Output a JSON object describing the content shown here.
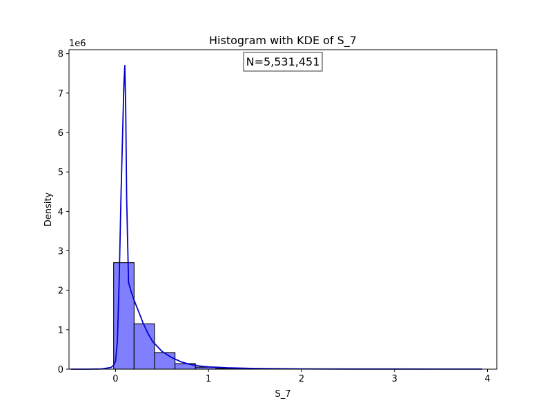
{
  "chart_data": {
    "type": "bar",
    "title": "Histogram with KDE of S_7",
    "xlabel": "S_7",
    "ylabel": "Density",
    "y_scale_label": "1e6",
    "annotation": "N=5,531,451",
    "xlim": [
      -0.5,
      4.1
    ],
    "ylim": [
      0,
      8.1
    ],
    "x_ticks": [
      0,
      1,
      2,
      3,
      4
    ],
    "x_tick_labels": [
      "0",
      "1",
      "2",
      "3",
      "4"
    ],
    "y_ticks": [
      0,
      1,
      2,
      3,
      4,
      5,
      6,
      7,
      8
    ],
    "y_tick_labels": [
      "0",
      "1",
      "2",
      "3",
      "4",
      "5",
      "6",
      "7",
      "8"
    ],
    "grid": false,
    "bin_edges": [
      -0.02,
      0.2,
      0.42,
      0.64,
      0.86,
      1.08,
      1.3,
      1.52,
      1.74,
      1.96,
      2.18,
      2.4,
      2.62,
      2.84,
      3.06,
      3.28,
      3.5,
      3.72,
      3.94
    ],
    "values": [
      2.7,
      1.15,
      0.42,
      0.14,
      0.05,
      0.02,
      0.012,
      0.008,
      0.005,
      0.004,
      0.003,
      0.002,
      0.002,
      0.0015,
      0.001,
      0.001,
      0.001,
      0.0008
    ],
    "kde": {
      "x": [
        -0.48,
        -0.3,
        -0.15,
        -0.05,
        -0.02,
        0.0,
        0.02,
        0.04,
        0.06,
        0.08,
        0.09,
        0.1,
        0.11,
        0.12,
        0.14,
        0.17,
        0.2,
        0.25,
        0.3,
        0.35,
        0.4,
        0.5,
        0.6,
        0.7,
        0.8,
        0.9,
        1.0,
        1.2,
        1.5,
        2.0,
        2.5,
        3.0,
        3.5,
        3.94
      ],
      "y": [
        0.0,
        0.0,
        0.005,
        0.04,
        0.1,
        0.2,
        0.7,
        2.3,
        4.5,
        6.3,
        7.2,
        7.7,
        6.6,
        4.3,
        2.2,
        1.95,
        1.75,
        1.45,
        1.15,
        0.9,
        0.7,
        0.45,
        0.3,
        0.19,
        0.12,
        0.08,
        0.06,
        0.035,
        0.018,
        0.007,
        0.004,
        0.003,
        0.002,
        0.001
      ]
    },
    "colors": {
      "bar_fill": "#8080ff",
      "bar_edge": "#000000",
      "kde_line": "#0000cc"
    }
  }
}
